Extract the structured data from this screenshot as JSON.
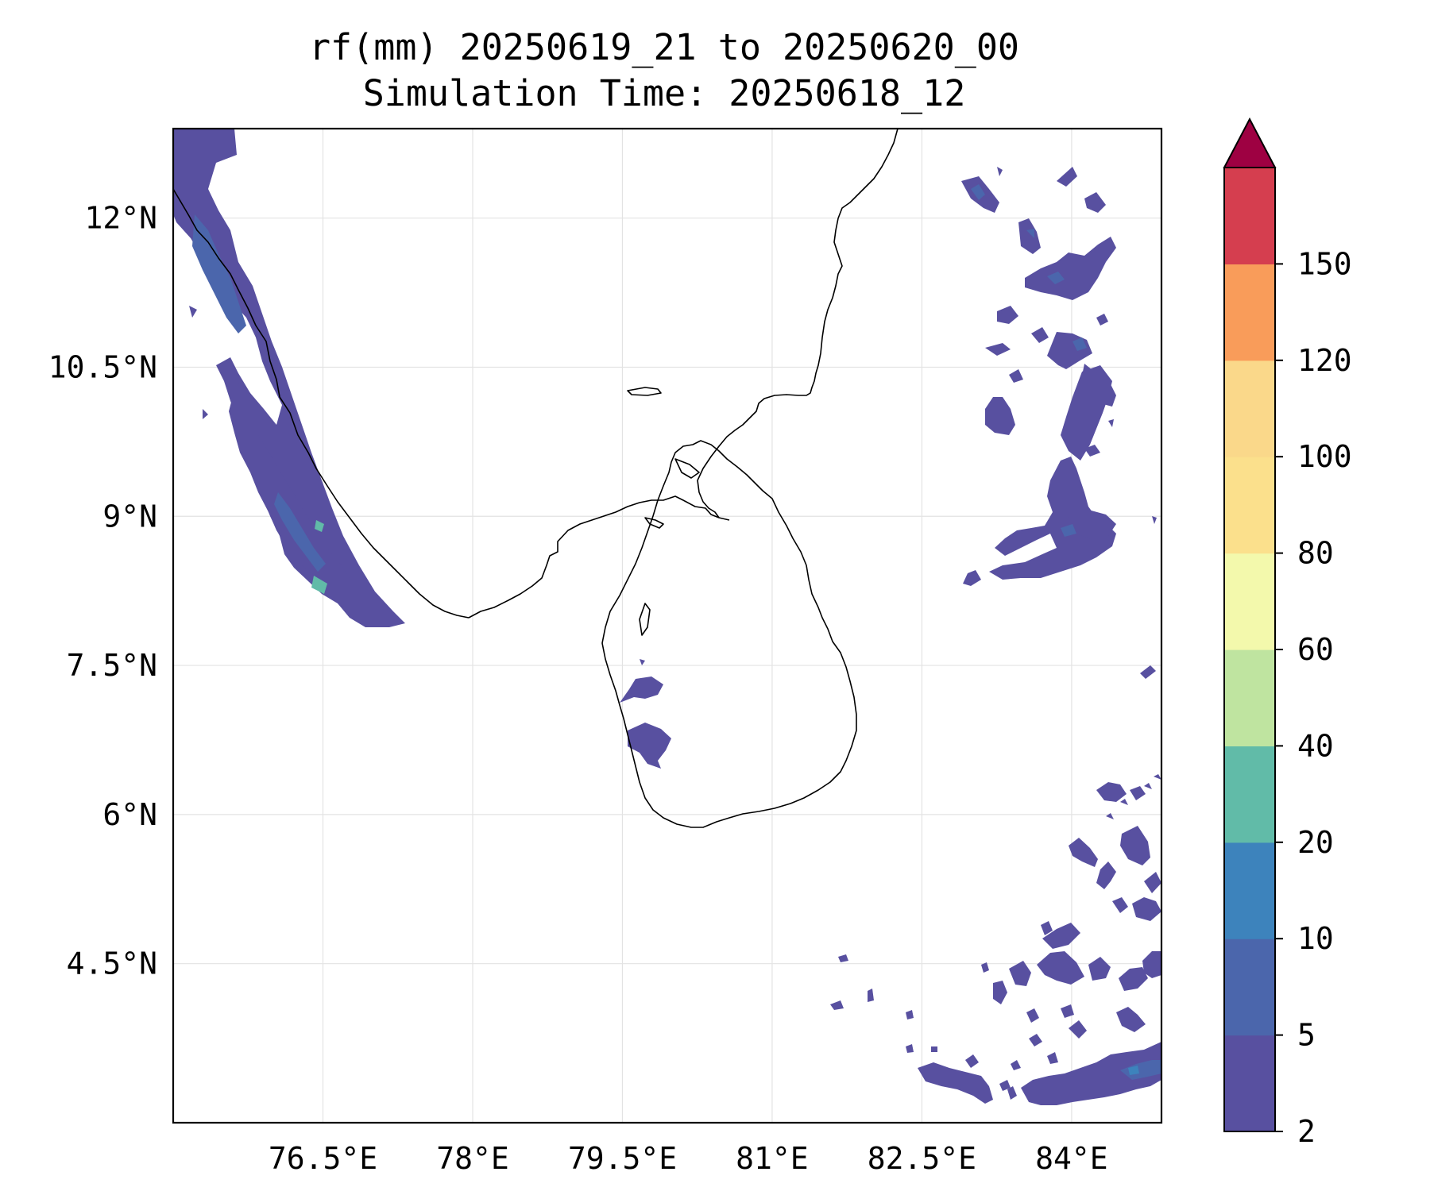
{
  "title": {
    "line1": "rf(mm) 20250619_21 to 20250620_00",
    "line2": "Simulation Time: 20250618_12"
  },
  "map": {
    "lon_range": [
      75.0,
      84.9
    ],
    "lat_range": [
      2.9,
      12.9
    ],
    "lon_ticks": [
      {
        "value": 76.5,
        "label": "76.5°E"
      },
      {
        "value": 78.0,
        "label": "78°E"
      },
      {
        "value": 79.5,
        "label": "79.5°E"
      },
      {
        "value": 81.0,
        "label": "81°E"
      },
      {
        "value": 82.5,
        "label": "82.5°E"
      },
      {
        "value": 84.0,
        "label": "84°E"
      }
    ],
    "lat_ticks": [
      {
        "value": 12.0,
        "label": "12°N"
      },
      {
        "value": 10.5,
        "label": "10.5°N"
      },
      {
        "value": 9.0,
        "label": "9°N"
      },
      {
        "value": 7.5,
        "label": "7.5°N"
      },
      {
        "value": 6.0,
        "label": "6°N"
      },
      {
        "value": 4.5,
        "label": "4.5°N"
      }
    ],
    "grid": true
  },
  "colorbar": {
    "levels": [
      "2",
      "5",
      "10",
      "20",
      "40",
      "60",
      "80",
      "100",
      "120",
      "150"
    ],
    "colors": [
      "#5850a0",
      "#4b66ac",
      "#3d83bc",
      "#61bba8",
      "#bfe4a0",
      "#f3f9ac",
      "#fbe08c",
      "#fad88a",
      "#f99c5a",
      "#d53e4f"
    ],
    "extend_color": "#9e0142",
    "extend": "max"
  }
}
